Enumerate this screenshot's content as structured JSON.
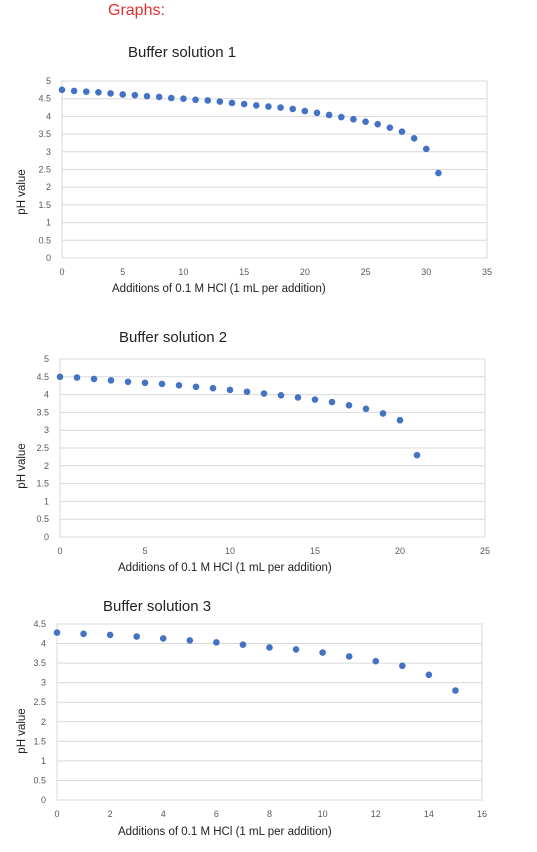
{
  "page": {
    "heading": "Graphs:"
  },
  "chart_data": [
    {
      "type": "scatter",
      "title": "Buffer solution 1",
      "xlabel": "Additions of 0.1 M HCl (1 mL per addition)",
      "ylabel": "pH value",
      "xlim": [
        0,
        35
      ],
      "ylim": [
        0,
        5
      ],
      "xticks": [
        0,
        5,
        10,
        15,
        20,
        25,
        30,
        35
      ],
      "yticks": [
        0,
        0.5,
        1,
        1.5,
        2,
        2.5,
        3,
        3.5,
        4,
        4.5,
        5
      ],
      "x": [
        0,
        1,
        2,
        3,
        4,
        5,
        6,
        7,
        8,
        9,
        10,
        11,
        12,
        13,
        14,
        15,
        16,
        17,
        18,
        19,
        20,
        21,
        22,
        23,
        24,
        25,
        26,
        27,
        28,
        29,
        30,
        31
      ],
      "y": [
        4.75,
        4.72,
        4.7,
        4.68,
        4.65,
        4.62,
        4.6,
        4.57,
        4.55,
        4.52,
        4.5,
        4.47,
        4.45,
        4.42,
        4.38,
        4.35,
        4.31,
        4.28,
        4.25,
        4.21,
        4.15,
        4.1,
        4.04,
        3.98,
        3.92,
        3.85,
        3.78,
        3.68,
        3.57,
        3.38,
        3.08,
        2.4
      ],
      "color": "#4472c4",
      "grid": true,
      "legend": "none"
    },
    {
      "type": "scatter",
      "title": "Buffer solution 2",
      "xlabel": "Additions of 0.1 M HCl (1 mL per addition)",
      "ylabel": "pH value",
      "xlim": [
        0,
        25
      ],
      "ylim": [
        0,
        5
      ],
      "xticks": [
        0,
        5,
        10,
        15,
        20,
        25
      ],
      "yticks": [
        0,
        0.5,
        1,
        1.5,
        2,
        2.5,
        3,
        3.5,
        4,
        4.5,
        5
      ],
      "x": [
        0,
        1,
        2,
        3,
        4,
        5,
        6,
        7,
        8,
        9,
        10,
        11,
        12,
        13,
        14,
        15,
        16,
        17,
        18,
        19,
        20,
        21
      ],
      "y": [
        4.5,
        4.48,
        4.44,
        4.4,
        4.36,
        4.33,
        4.3,
        4.26,
        4.22,
        4.18,
        4.13,
        4.08,
        4.03,
        3.98,
        3.92,
        3.86,
        3.79,
        3.7,
        3.6,
        3.47,
        3.28,
        2.3
      ],
      "color": "#4472c4",
      "grid": true,
      "legend": "none"
    },
    {
      "type": "scatter",
      "title": "Buffer solution 3",
      "xlabel": "Additions of 0.1 M HCl (1 mL per addition)",
      "ylabel": "pH value",
      "xlim": [
        0,
        16
      ],
      "ylim": [
        0,
        4.5
      ],
      "xticks": [
        0,
        2,
        4,
        6,
        8,
        10,
        12,
        14,
        16
      ],
      "yticks": [
        0,
        0.5,
        1,
        1.5,
        2,
        2.5,
        3,
        3.5,
        4,
        4.5
      ],
      "x": [
        0,
        1,
        2,
        3,
        4,
        5,
        6,
        7,
        8,
        9,
        10,
        11,
        12,
        13,
        14,
        15
      ],
      "y": [
        4.28,
        4.25,
        4.22,
        4.18,
        4.13,
        4.08,
        4.03,
        3.97,
        3.9,
        3.85,
        3.77,
        3.67,
        3.55,
        3.43,
        3.2,
        2.8
      ],
      "color": "#4472c4",
      "grid": true,
      "legend": "none"
    }
  ]
}
